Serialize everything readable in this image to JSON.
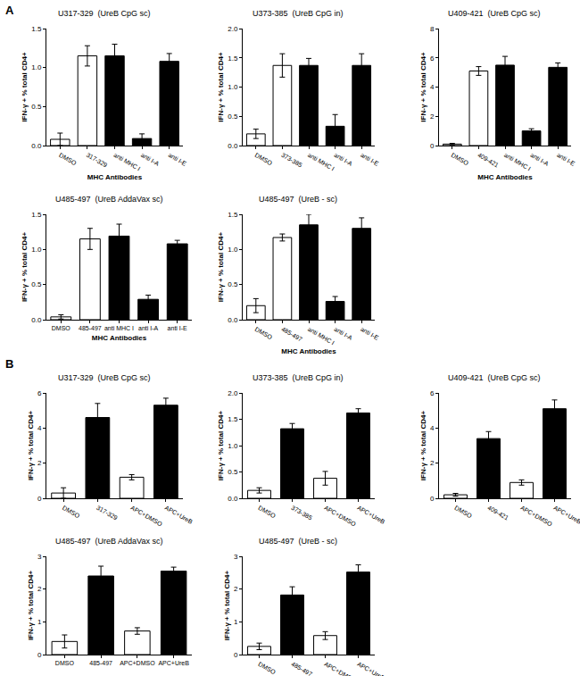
{
  "chart_data": [
    {
      "type": "bar",
      "title": "U317-329  (UreB CpG sc)",
      "annotations": [
        "A"
      ],
      "x_label": "MHC Antibodies",
      "y_label": "IFN-γ + % total CD4+",
      "categories": [
        "DMSO",
        "317-329",
        "anti MHC I",
        "anti I-A",
        "anti I-E"
      ],
      "values": [
        0.08,
        1.15,
        1.15,
        0.09,
        1.08
      ],
      "error": [
        0.08,
        0.13,
        0.15,
        0.06,
        0.1
      ],
      "colors": [
        "#ffffff",
        "#ffffff",
        "#000000",
        "#000000",
        "#000000"
      ],
      "ylim": [
        0,
        1.5
      ],
      "yticks": [
        {
          "value": 0,
          "label": "0.0"
        },
        {
          "value": 0.5,
          "label": "0.5"
        },
        {
          "value": 1,
          "label": "1.0"
        },
        {
          "value": 1.5,
          "label": "1.5"
        }
      ]
    },
    {
      "type": "bar",
      "title": "U373-385  (UreB CpG in)",
      "y_label": "IFN-γ + % total CD4+",
      "categories": [
        "DMSO",
        "373-385",
        "anti MHC I",
        "anti I-A",
        "anti I-E"
      ],
      "values": [
        0.2,
        1.37,
        1.37,
        0.33,
        1.37
      ],
      "error": [
        0.08,
        0.2,
        0.12,
        0.2,
        0.2
      ],
      "colors": [
        "#ffffff",
        "#ffffff",
        "#000000",
        "#000000",
        "#000000"
      ],
      "ylim": [
        0,
        2
      ],
      "yticks": [
        {
          "value": 0,
          "label": "0.0"
        },
        {
          "value": 0.5,
          "label": "0.5"
        },
        {
          "value": 1,
          "label": "1.0"
        },
        {
          "value": 1.5,
          "label": "1.5"
        },
        {
          "value": 2,
          "label": "2.0"
        }
      ]
    },
    {
      "type": "bar",
      "title": "U409-421  (UreB CpG sc)",
      "x_label": "MHC Antibodies",
      "y_label": "IFN-γ + % total CD4+",
      "categories": [
        "DMSO",
        "409-421",
        "anti MHC I",
        "anti I-A",
        "anti I-E"
      ],
      "values": [
        0.1,
        5.1,
        5.5,
        1.0,
        5.35
      ],
      "error": [
        0.05,
        0.3,
        0.6,
        0.15,
        0.3
      ],
      "colors": [
        "#ffffff",
        "#ffffff",
        "#000000",
        "#000000",
        "#000000"
      ],
      "ylim": [
        0,
        8
      ],
      "yticks": [
        0,
        2,
        4,
        6,
        8
      ]
    },
    {
      "type": "bar",
      "title": "U485-497  (UreB AddaVax sc)",
      "x_label": "MHC Antibodies",
      "y_label": "IFN-γ + % total CD4+",
      "categories": [
        "DMSO",
        "485-497",
        "anti MHC I",
        "anti I-A",
        "anti I-E"
      ],
      "values": [
        0.04,
        1.15,
        1.19,
        0.29,
        1.08
      ],
      "error": [
        0.03,
        0.15,
        0.17,
        0.06,
        0.05
      ],
      "colors": [
        "#ffffff",
        "#ffffff",
        "#000000",
        "#000000",
        "#000000"
      ],
      "ylim": [
        0,
        1.5
      ],
      "yticks": [
        {
          "value": 0,
          "label": "0.0"
        },
        {
          "value": 0.5,
          "label": "0.5"
        },
        {
          "value": 1,
          "label": "1.0"
        },
        {
          "value": 1.5,
          "label": "1.5"
        }
      ]
    },
    {
      "type": "bar",
      "title": "U485-497  (UreB - sc)",
      "x_label": "MHC Antibodies",
      "y_label": "IFN-γ + % total CD4+",
      "categories": [
        "DMSO",
        "485-497",
        "anti MHC I",
        "anti I-A",
        "anti I-E"
      ],
      "values": [
        0.2,
        1.17,
        1.35,
        0.26,
        1.3
      ],
      "error": [
        0.1,
        0.05,
        0.15,
        0.07,
        0.15
      ],
      "colors": [
        "#ffffff",
        "#ffffff",
        "#000000",
        "#000000",
        "#000000"
      ],
      "ylim": [
        0,
        1.5
      ],
      "yticks": [
        {
          "value": 0,
          "label": "0.0"
        },
        {
          "value": 0.5,
          "label": "0.5"
        },
        {
          "value": 1,
          "label": "1.0"
        },
        {
          "value": 1.5,
          "label": "1.5"
        }
      ]
    },
    {
      "type": "bar",
      "title": "U317-329  (UreB CpG sc)",
      "annotations": [
        "B"
      ],
      "y_label": "IFN-γ + % total CD4+",
      "categories": [
        "DMSO",
        "317-329",
        "APC+DMSO",
        "APC+UreB"
      ],
      "values": [
        0.3,
        4.6,
        1.2,
        5.3
      ],
      "error": [
        0.3,
        0.8,
        0.15,
        0.4
      ],
      "colors": [
        "#ffffff",
        "#000000",
        "#ffffff",
        "#000000"
      ],
      "ylim": [
        0,
        6
      ],
      "yticks": [
        0,
        2,
        4,
        6
      ]
    },
    {
      "type": "bar",
      "title": "U373-385  (UreB CpG in)",
      "y_label": "IFN-γ + % total CD4+",
      "categories": [
        "DMSO",
        "373-385",
        "APC+DMSO",
        "APC+UreB"
      ],
      "values": [
        0.15,
        1.32,
        0.38,
        1.62
      ],
      "error": [
        0.05,
        0.1,
        0.13,
        0.08
      ],
      "colors": [
        "#ffffff",
        "#000000",
        "#ffffff",
        "#000000"
      ],
      "ylim": [
        0,
        2
      ],
      "yticks": [
        {
          "value": 0,
          "label": "0.0"
        },
        {
          "value": 0.5,
          "label": "0.5"
        },
        {
          "value": 1,
          "label": "1.0"
        },
        {
          "value": 1.5,
          "label": "1.5"
        },
        {
          "value": 2,
          "label": "2.0"
        }
      ]
    },
    {
      "type": "bar",
      "title": "U409-421  (UreB CpG sc)",
      "y_label": "IFN-γ + % total CD4+",
      "categories": [
        "DMSO",
        "409-421",
        "APC+DMSO",
        "APC+UreB"
      ],
      "values": [
        0.2,
        3.4,
        0.9,
        5.1
      ],
      "error": [
        0.08,
        0.4,
        0.15,
        0.5
      ],
      "colors": [
        "#ffffff",
        "#000000",
        "#ffffff",
        "#000000"
      ],
      "ylim": [
        0,
        6
      ],
      "yticks": [
        0,
        2,
        4,
        6
      ]
    },
    {
      "type": "bar",
      "title": "U485-497  (UreB AddaVax sc)",
      "y_label": "IFN-γ + % total CD4+",
      "categories": [
        "DMSO",
        "485-497",
        "APC+DMSO",
        "APC+UreB"
      ],
      "values": [
        0.4,
        2.4,
        0.72,
        2.55
      ],
      "error": [
        0.2,
        0.3,
        0.1,
        0.12
      ],
      "colors": [
        "#ffffff",
        "#000000",
        "#ffffff",
        "#000000"
      ],
      "ylim": [
        0,
        3
      ],
      "yticks": [
        0,
        1,
        2,
        3
      ]
    },
    {
      "type": "bar",
      "title": "U485-497  (UreB - sc)",
      "y_label": "IFN-γ + % total CD4+",
      "categories": [
        "DMSO",
        "485-497",
        "APC+DMSO",
        "APC+UreB"
      ],
      "values": [
        0.25,
        1.82,
        0.58,
        2.52
      ],
      "error": [
        0.1,
        0.25,
        0.12,
        0.22
      ],
      "colors": [
        "#ffffff",
        "#000000",
        "#ffffff",
        "#000000"
      ],
      "ylim": [
        0,
        3
      ],
      "yticks": [
        0,
        1,
        2,
        3
      ]
    }
  ]
}
